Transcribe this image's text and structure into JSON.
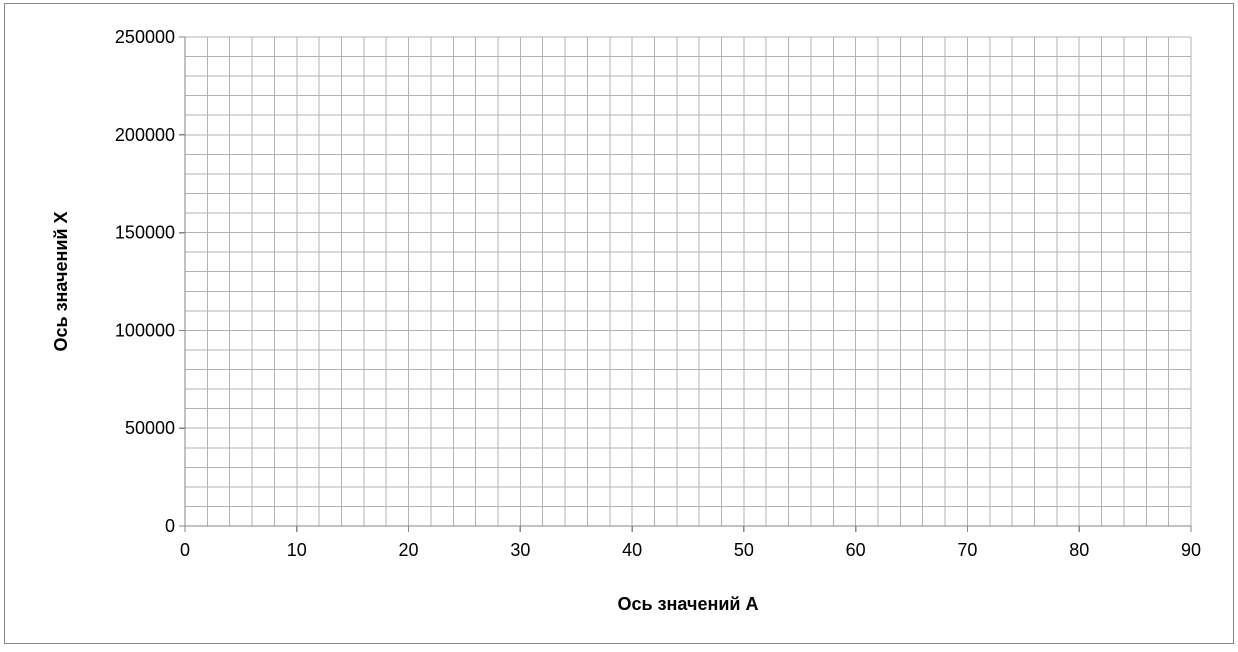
{
  "chart_data": {
    "type": "scatter",
    "title": "",
    "xlabel": "Ось значений  А",
    "ylabel": "Ось значений Х",
    "xlim": [
      0,
      90
    ],
    "ylim": [
      0,
      250000
    ],
    "x_major_ticks": [
      0,
      10,
      20,
      30,
      40,
      50,
      60,
      70,
      80,
      90
    ],
    "y_major_ticks": [
      0,
      50000,
      100000,
      150000,
      200000,
      250000
    ],
    "x_minor_step": 2,
    "y_minor_step": 10000,
    "grid": true,
    "series": [],
    "colors": {
      "grid": "#b3b3b3",
      "axis": "#868686",
      "frame": "#888888"
    }
  }
}
